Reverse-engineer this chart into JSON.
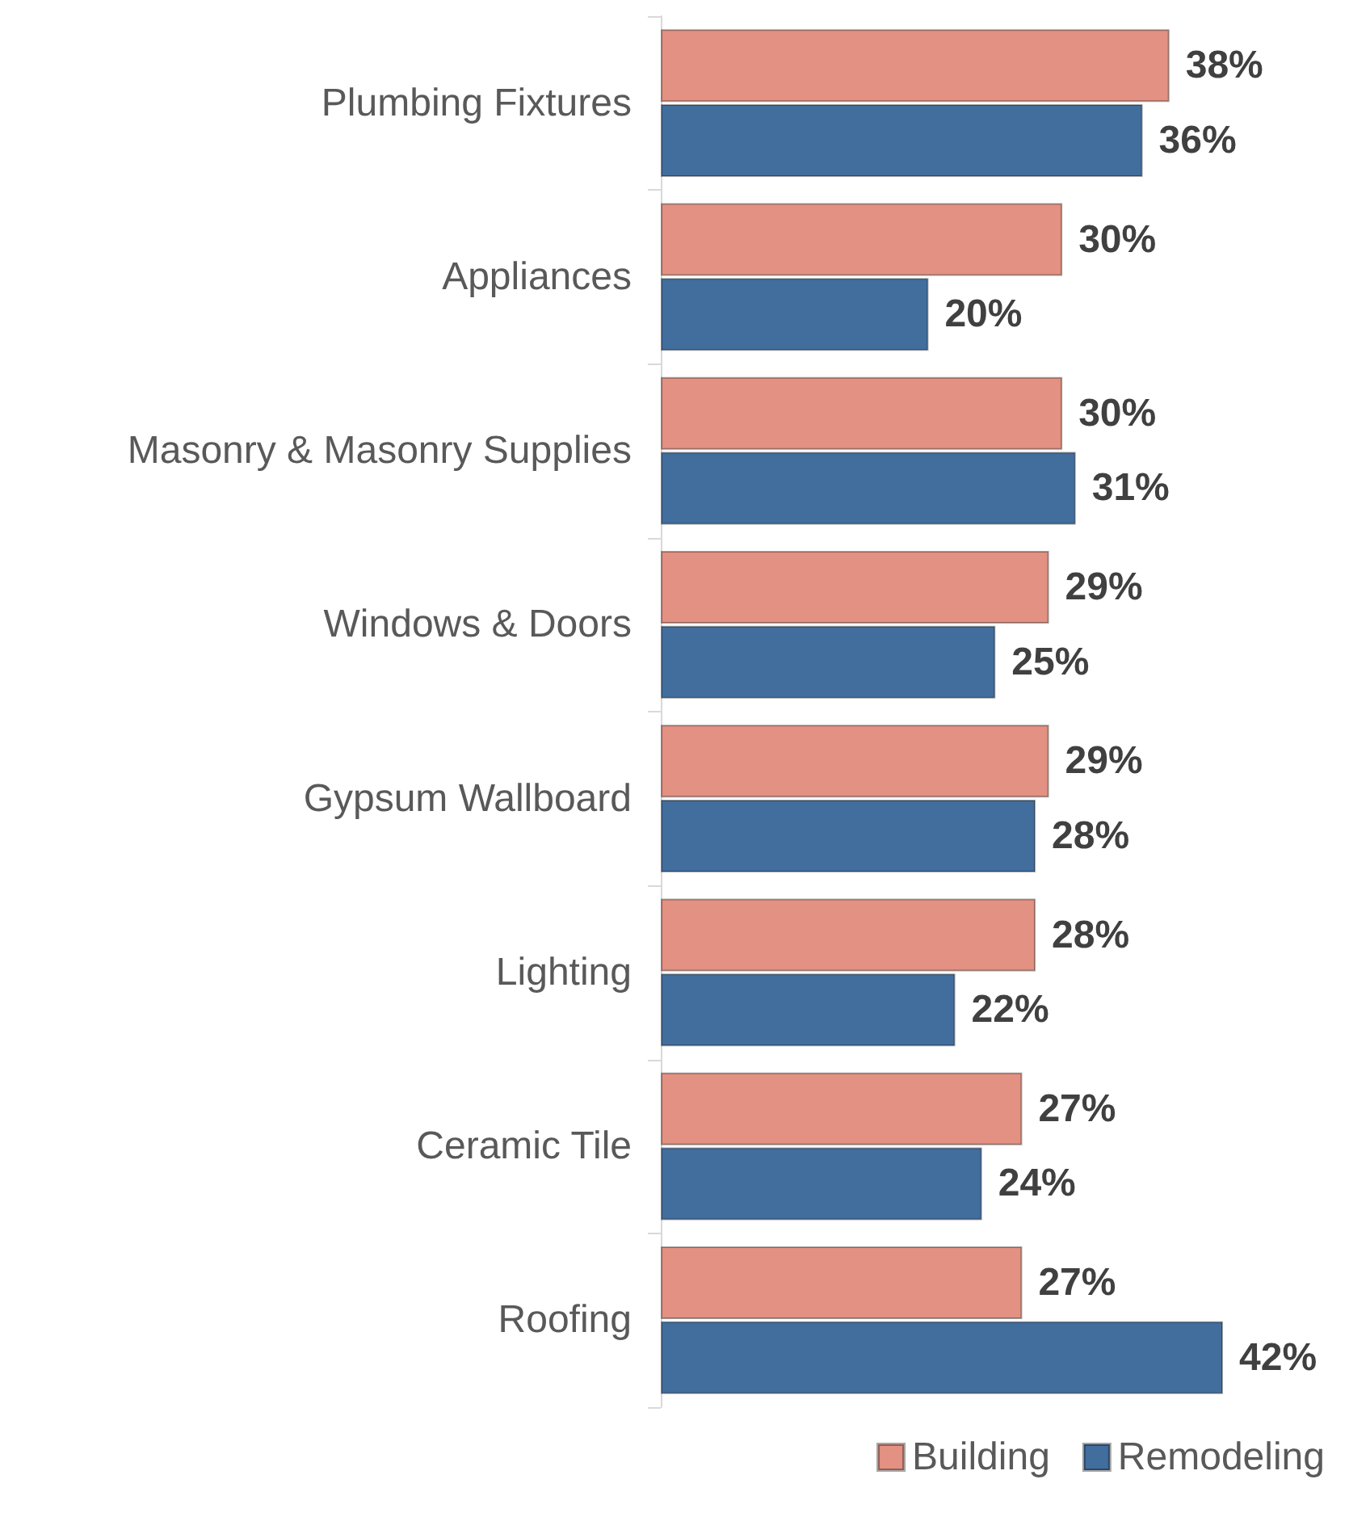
{
  "chart_data": {
    "type": "bar",
    "orientation": "horizontal",
    "categories": [
      "Plumbing Fixtures",
      "Appliances",
      "Masonry & Masonry Supplies",
      "Windows & Doors",
      "Gypsum Wallboard",
      "Lighting",
      "Ceramic Tile",
      "Roofing"
    ],
    "series": [
      {
        "name": "Building",
        "color": "#e39182",
        "values": [
          38,
          30,
          30,
          29,
          29,
          28,
          27,
          27
        ],
        "value_labels": [
          "38%",
          "30%",
          "30%",
          "29%",
          "29%",
          "28%",
          "27%",
          "27%"
        ]
      },
      {
        "name": "Remodeling",
        "color": "#426e9e",
        "values": [
          36,
          20,
          31,
          25,
          28,
          22,
          24,
          42
        ],
        "value_labels": [
          "36%",
          "20%",
          "31%",
          "25%",
          "28%",
          "22%",
          "24%",
          "42%"
        ]
      }
    ],
    "grid": false,
    "legend": "bottom"
  }
}
